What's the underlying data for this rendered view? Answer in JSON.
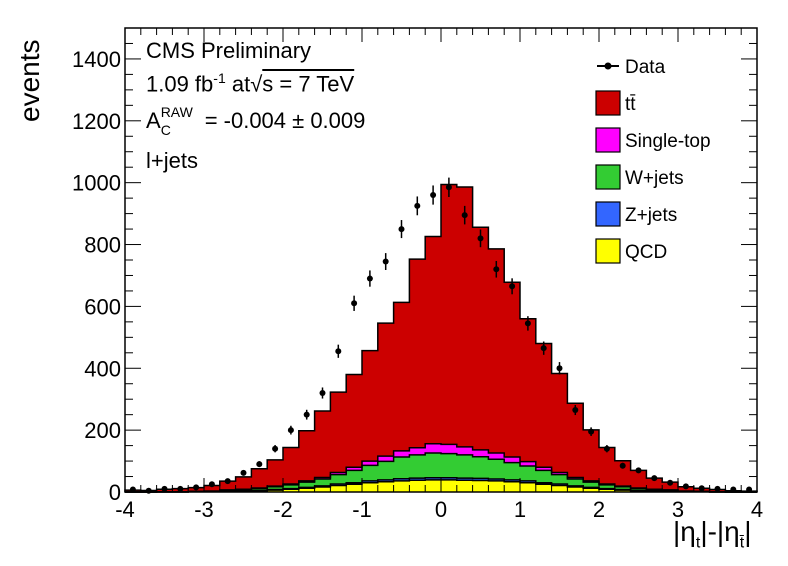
{
  "chart_data": {
    "type": "bar",
    "subtype": "stacked-histogram-with-data-points",
    "ylabel": "events",
    "xlabel_parts": {
      "main1": "|η",
      "sub1": "t",
      "mid": "|-|η",
      "sub2": "t̄",
      "end": "|"
    },
    "xlim": [
      -4,
      4
    ],
    "ylim": [
      0,
      1500
    ],
    "x_ticks": [
      "-4",
      "-3",
      "-2",
      "-1",
      "0",
      "1",
      "2",
      "3",
      "4"
    ],
    "y_ticks": [
      "0",
      "200",
      "400",
      "600",
      "800",
      "1000",
      "1200",
      "1400"
    ],
    "bin_edges": [
      -4.0,
      -3.8,
      -3.6,
      -3.4,
      -3.2,
      -3.0,
      -2.8,
      -2.6,
      -2.4,
      -2.2,
      -2.0,
      -1.8,
      -1.6,
      -1.4,
      -1.2,
      -1.0,
      -0.8,
      -0.6,
      -0.4,
      -0.2,
      0.0,
      0.2,
      0.4,
      0.6,
      0.8,
      1.0,
      1.2,
      1.4,
      1.6,
      1.8,
      2.0,
      2.2,
      2.4,
      2.6,
      2.8,
      3.0,
      3.2,
      3.4,
      3.6,
      3.8,
      4.0
    ],
    "series": [
      {
        "name": "QCD",
        "color": "#ffff00",
        "values": [
          0,
          0,
          0,
          0,
          1,
          1,
          2,
          3,
          4,
          6,
          9,
          12,
          16,
          21,
          25,
          30,
          33,
          36,
          38,
          39,
          39,
          38,
          37,
          36,
          33,
          30,
          25,
          21,
          16,
          12,
          9,
          6,
          4,
          3,
          2,
          1,
          1,
          0,
          0,
          0
        ]
      },
      {
        "name": "Z+jets",
        "color": "#3366ff",
        "values": [
          0,
          0,
          0,
          0,
          0,
          0,
          1,
          1,
          1,
          2,
          2,
          3,
          4,
          5,
          5,
          6,
          6,
          7,
          7,
          7,
          7,
          7,
          7,
          6,
          6,
          6,
          5,
          5,
          4,
          3,
          2,
          2,
          1,
          1,
          1,
          0,
          0,
          0,
          0,
          0
        ]
      },
      {
        "name": "W+jets",
        "color": "#33cc33",
        "values": [
          0,
          0,
          1,
          1,
          1,
          2,
          3,
          4,
          6,
          9,
          12,
          17,
          22,
          30,
          40,
          50,
          60,
          70,
          75,
          80,
          78,
          75,
          70,
          64,
          56,
          48,
          40,
          30,
          22,
          17,
          12,
          9,
          6,
          4,
          3,
          2,
          1,
          1,
          0,
          0
        ]
      },
      {
        "name": "Single-top",
        "color": "#ff00ff",
        "values": [
          0,
          0,
          0,
          0,
          0,
          0,
          1,
          1,
          2,
          2,
          3,
          4,
          5,
          7,
          10,
          14,
          17,
          20,
          23,
          30,
          30,
          26,
          22,
          20,
          18,
          14,
          10,
          7,
          5,
          4,
          3,
          2,
          2,
          1,
          1,
          0,
          0,
          0,
          0,
          0
        ]
      },
      {
        "name": "tt̄",
        "color": "#cc0000",
        "values": [
          6,
          5,
          8,
          10,
          12,
          18,
          28,
          40,
          62,
          85,
          118,
          162,
          215,
          260,
          300,
          357,
          430,
          480,
          610,
          670,
          840,
          840,
          720,
          660,
          565,
          462,
          400,
          320,
          240,
          165,
          118,
          82,
          57,
          36,
          25,
          14,
          10,
          7,
          4,
          3
        ]
      }
    ],
    "data_points": {
      "name": "Data",
      "x": [
        -3.9,
        -3.7,
        -3.5,
        -3.3,
        -3.1,
        -2.9,
        -2.7,
        -2.5,
        -2.3,
        -2.1,
        -1.9,
        -1.7,
        -1.5,
        -1.3,
        -1.1,
        -0.9,
        -0.7,
        -0.5,
        -0.3,
        -0.1,
        0.1,
        0.3,
        0.5,
        0.7,
        0.9,
        1.1,
        1.3,
        1.5,
        1.7,
        1.9,
        2.1,
        2.3,
        2.5,
        2.7,
        2.9,
        3.1,
        3.3,
        3.5,
        3.7,
        3.9
      ],
      "y": [
        8,
        4,
        10,
        10,
        15,
        25,
        35,
        62,
        90,
        140,
        200,
        250,
        320,
        455,
        610,
        690,
        745,
        850,
        925,
        960,
        985,
        895,
        820,
        720,
        665,
        545,
        465,
        400,
        265,
        195,
        140,
        85,
        70,
        45,
        30,
        18,
        12,
        10,
        8,
        8
      ]
    },
    "legend": [
      "Data",
      "tt̄",
      "Single-top",
      "W+jets",
      "Z+jets",
      "QCD"
    ],
    "legend_position": "top-right",
    "annotations": {
      "line1": "CMS Preliminary",
      "line2_lumi": "1.09 fb",
      "line2_sup": "-1",
      "line2_at": " at",
      "line2_sqrt": "√",
      "line2_rest": "s = 7 TeV",
      "line3_A": "A",
      "line3_sup": "RAW",
      "line3_sub": "C",
      "line3_rest": "= -0.004 ± 0.009",
      "line4": "l+jets"
    }
  }
}
